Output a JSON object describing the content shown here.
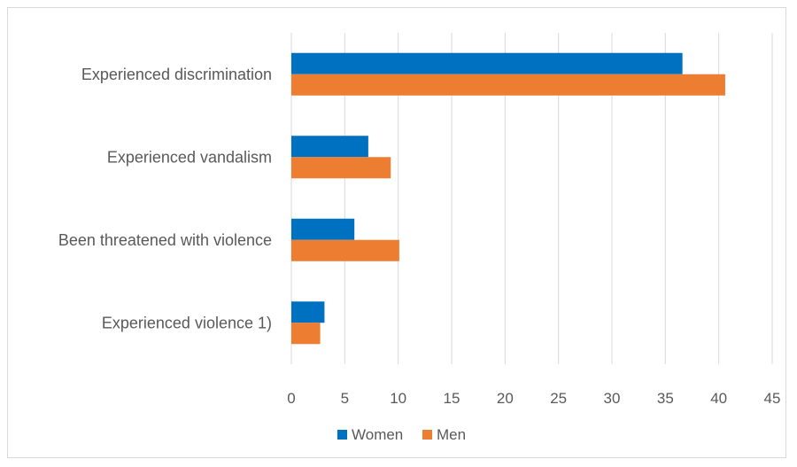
{
  "chart_data": {
    "type": "bar",
    "orientation": "horizontal",
    "categories": [
      "Experienced discrimination",
      "Experienced vandalism",
      "Been threatened with violence",
      "Experienced violence 1)"
    ],
    "series": [
      {
        "name": "Women",
        "color": "#0070C0",
        "values": [
          36.6,
          7.2,
          5.9,
          3.1
        ]
      },
      {
        "name": "Men",
        "color": "#ED7D31",
        "values": [
          40.6,
          9.3,
          10.1,
          2.7
        ]
      }
    ],
    "xlim": [
      0,
      45
    ],
    "xticks": [
      0,
      5,
      10,
      15,
      20,
      25,
      30,
      35,
      40,
      45
    ],
    "grid": "vertical",
    "legend": "bottom"
  }
}
